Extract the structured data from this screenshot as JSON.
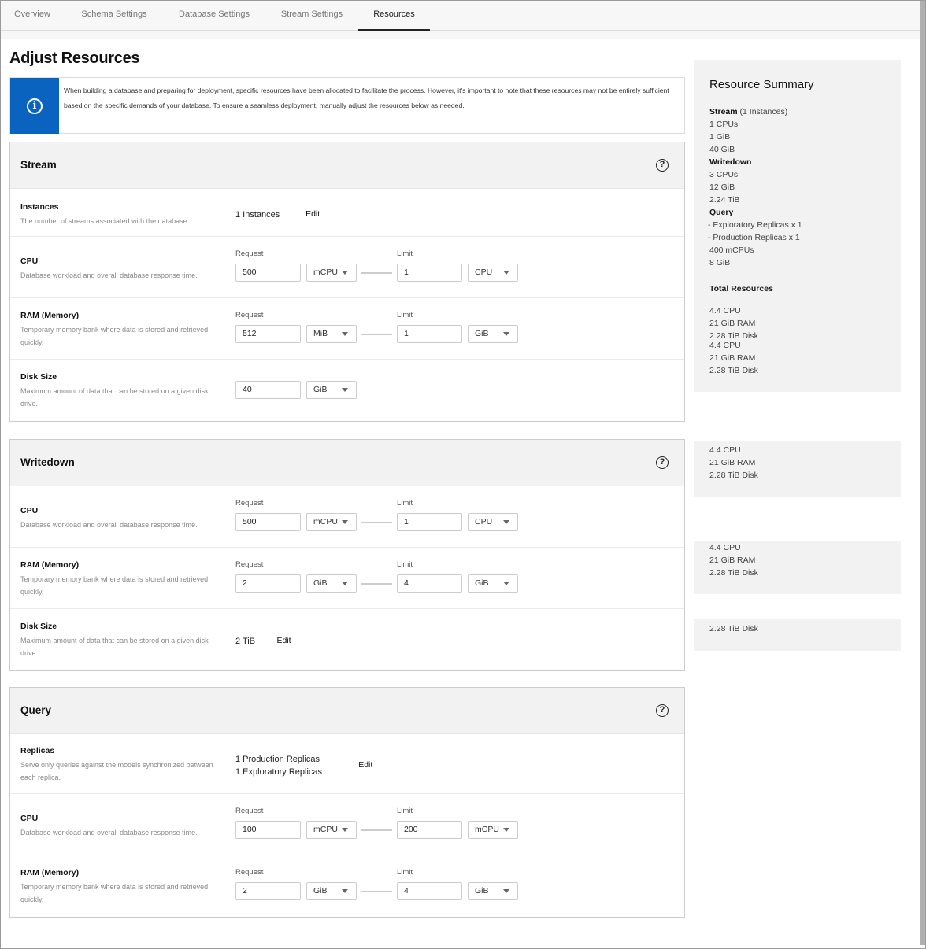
{
  "tabs": [
    {
      "label": "Overview"
    },
    {
      "label": "Schema Settings"
    },
    {
      "label": "Database Settings"
    },
    {
      "label": "Stream Settings"
    },
    {
      "label": "Resources",
      "active": true
    }
  ],
  "page_title": "Adjust Resources",
  "info": {
    "icon": "info-icon",
    "text": "When building a database and preparing for deployment, specific resources have been allocated to facilitate the process. However, it's important to note that these resources may not be entirely sufficient based on the specific demands of your database. To ensure a seamless deployment, manually adjust the resources below as needed."
  },
  "labels": {
    "request": "Request",
    "limit": "Limit",
    "edit": "Edit"
  },
  "sections": [
    {
      "title": "Stream",
      "rows": [
        {
          "type": "value",
          "label": "Instances",
          "desc": "The number of streams associated with the database.",
          "values": [
            "1 Instances"
          ]
        },
        {
          "type": "range",
          "label": "CPU",
          "desc": "Database workload and overall database response time.",
          "request": "500",
          "request_unit": "mCPU",
          "limit": "1",
          "limit_unit": "CPU"
        },
        {
          "type": "range",
          "label": "RAM (Memory)",
          "desc": "Temporary memory bank where data is stored and retrieved quickly.",
          "request": "512",
          "request_unit": "MiB",
          "limit": "1",
          "limit_unit": "GiB"
        },
        {
          "type": "single",
          "label": "Disk Size",
          "desc": "Maximum amount of data that can be stored on a given disk drive.",
          "request": "40",
          "request_unit": "GiB"
        }
      ]
    },
    {
      "title": "Writedown",
      "rows": [
        {
          "type": "range",
          "label": "CPU",
          "desc": "Database workload and overall database response time.",
          "request": "500",
          "request_unit": "mCPU",
          "limit": "1",
          "limit_unit": "CPU"
        },
        {
          "type": "range",
          "label": "RAM (Memory)",
          "desc": "Temporary memory bank where data is stored and retrieved quickly.",
          "request": "2",
          "request_unit": "GiB",
          "limit": "4",
          "limit_unit": "GiB"
        },
        {
          "type": "value",
          "label": "Disk Size",
          "desc": "Maximum amount of data that can be stored on a given disk drive.",
          "values": [
            "2 TiB"
          ]
        }
      ]
    },
    {
      "title": "Query",
      "rows": [
        {
          "type": "value",
          "label": "Replicas",
          "desc": "Serve only queries against the models synchronized between each replica.",
          "values": [
            "1 Production Replicas",
            "1 Exploratory Replicas"
          ]
        },
        {
          "type": "range",
          "label": "CPU",
          "desc": "Database workload and overall database response time.",
          "request": "100",
          "request_unit": "mCPU",
          "limit": "200",
          "limit_unit": "mCPU"
        },
        {
          "type": "range",
          "label": "RAM (Memory)",
          "desc": "Temporary memory bank where data is stored and retrieved quickly.",
          "request": "2",
          "request_unit": "GiB",
          "limit": "4",
          "limit_unit": "GiB"
        }
      ]
    }
  ],
  "summary": {
    "title": "Resource Summary",
    "stream_label": "Stream",
    "stream_count": "(1 Instances)",
    "stream_lines": [
      "1 CPUs",
      "1 GiB",
      "40 GiB"
    ],
    "writedown_label": "Writedown",
    "writedown_lines": [
      "3 CPUs",
      "12 GiB",
      "2.24 TiB"
    ],
    "query_label": "Query",
    "query_lines": [
      "- Exploratory Replicas x 1",
      "- Production Replicas x 1",
      "400 mCPUs",
      "8 GiB"
    ],
    "total_label": "Total Resources",
    "total_lines": [
      "4.4 CPU",
      "21 GiB RAM",
      "2.28 TiB Disk"
    ]
  }
}
